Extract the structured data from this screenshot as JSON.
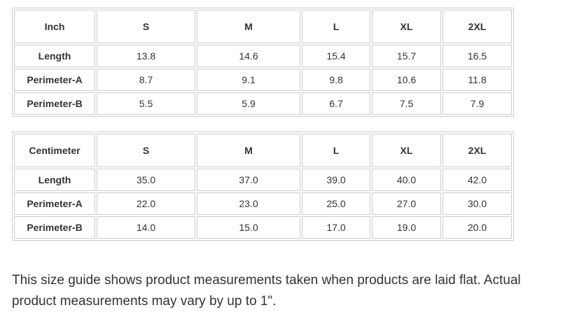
{
  "tables": [
    {
      "header": [
        "Inch",
        "S",
        "M",
        "L",
        "XL",
        "2XL"
      ],
      "rows": [
        [
          "Length",
          "13.8",
          "14.6",
          "15.4",
          "15.7",
          "16.5"
        ],
        [
          "Perimeter-A",
          "8.7",
          "9.1",
          "9.8",
          "10.6",
          "11.8"
        ],
        [
          "Perimeter-B",
          "5.5",
          "5.9",
          "6.7",
          "7.5",
          "7.9"
        ]
      ]
    },
    {
      "header": [
        "Centimeter",
        "S",
        "M",
        "L",
        "XL",
        "2XL"
      ],
      "rows": [
        [
          "Length",
          "35.0",
          "37.0",
          "39.0",
          "40.0",
          "42.0"
        ],
        [
          "Perimeter-A",
          "22.0",
          "23.0",
          "25.0",
          "27.0",
          "30.0"
        ],
        [
          "Perimeter-B",
          "14.0",
          "15.0",
          "17.0",
          "19.0",
          "20.0"
        ]
      ]
    }
  ],
  "note": "This size guide shows product measurements taken when products are laid flat. Actual product measurements may vary by up to 1\"."
}
